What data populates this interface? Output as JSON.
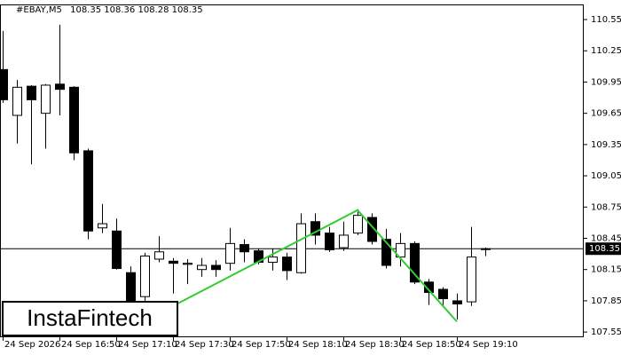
{
  "chart_data": {
    "type": "candlestick",
    "symbol": "#EBAY,M5",
    "ohlc": [
      108.35,
      108.36,
      108.28,
      108.35
    ],
    "logo": "InstaFintech",
    "categories": [
      "24 Sep 2026",
      null,
      null,
      null,
      "24 Sep 16:50",
      null,
      null,
      null,
      "24 Sep 17:10",
      null,
      null,
      null,
      "24 Sep 17:30",
      null,
      null,
      null,
      "24 Sep 17:50",
      null,
      null,
      null,
      "24 Sep 18:10",
      null,
      null,
      null,
      "24 Sep 18:30",
      null,
      null,
      null,
      "24 Sep 18:50",
      null,
      null,
      null,
      "24 Sep 19:10",
      null,
      null
    ],
    "open": [
      110.07,
      109.63,
      109.91,
      109.65,
      109.93,
      109.9,
      109.29,
      108.55,
      108.52,
      108.12,
      107.89,
      108.25,
      108.23,
      108.2,
      108.15,
      108.19,
      108.21,
      108.39,
      108.33,
      108.22,
      108.27,
      108.12,
      108.61,
      108.5,
      108.36,
      108.5,
      108.65,
      108.44,
      108.27,
      108.4,
      108.03,
      107.96,
      107.85,
      107.84,
      108.35
    ],
    "high": [
      110.44,
      109.97,
      109.92,
      109.93,
      110.5,
      109.91,
      109.31,
      108.78,
      108.64,
      108.18,
      108.31,
      108.47,
      108.26,
      108.25,
      108.26,
      108.24,
      108.55,
      108.44,
      108.35,
      108.35,
      108.31,
      108.69,
      108.69,
      108.56,
      108.61,
      108.73,
      108.69,
      108.54,
      108.5,
      108.42,
      108.06,
      107.98,
      107.92,
      108.56,
      108.36
    ],
    "low": [
      109.75,
      109.36,
      109.16,
      109.31,
      109.63,
      109.2,
      108.44,
      108.5,
      108.15,
      107.82,
      107.8,
      108.22,
      107.92,
      108.01,
      108.08,
      108.08,
      108.14,
      108.22,
      108.2,
      108.14,
      108.05,
      108.11,
      108.39,
      108.32,
      108.33,
      108.48,
      108.39,
      108.16,
      108.18,
      108.01,
      107.81,
      107.8,
      107.67,
      107.8,
      108.28
    ],
    "close": [
      109.78,
      109.9,
      109.78,
      109.92,
      109.88,
      109.27,
      108.52,
      108.59,
      108.16,
      107.84,
      108.28,
      108.32,
      108.21,
      108.21,
      108.19,
      108.15,
      108.4,
      108.32,
      108.22,
      108.27,
      108.14,
      108.59,
      108.48,
      108.34,
      108.48,
      108.67,
      108.42,
      108.19,
      108.4,
      108.03,
      107.93,
      107.87,
      107.82,
      108.27,
      108.35
    ],
    "up_color": "#ffffff",
    "down_color": "#000000",
    "current_price": 108.35,
    "pattern_line": {
      "color": "#33cc33",
      "candle_index": [
        12,
        25,
        32
      ],
      "prices": [
        107.8,
        108.72,
        107.65
      ]
    },
    "ylim": [
      107.5,
      110.695
    ],
    "yticks": [
      110.55,
      110.25,
      109.95,
      109.65,
      109.35,
      109.05,
      108.75,
      108.45,
      108.15,
      107.85,
      107.55
    ]
  }
}
